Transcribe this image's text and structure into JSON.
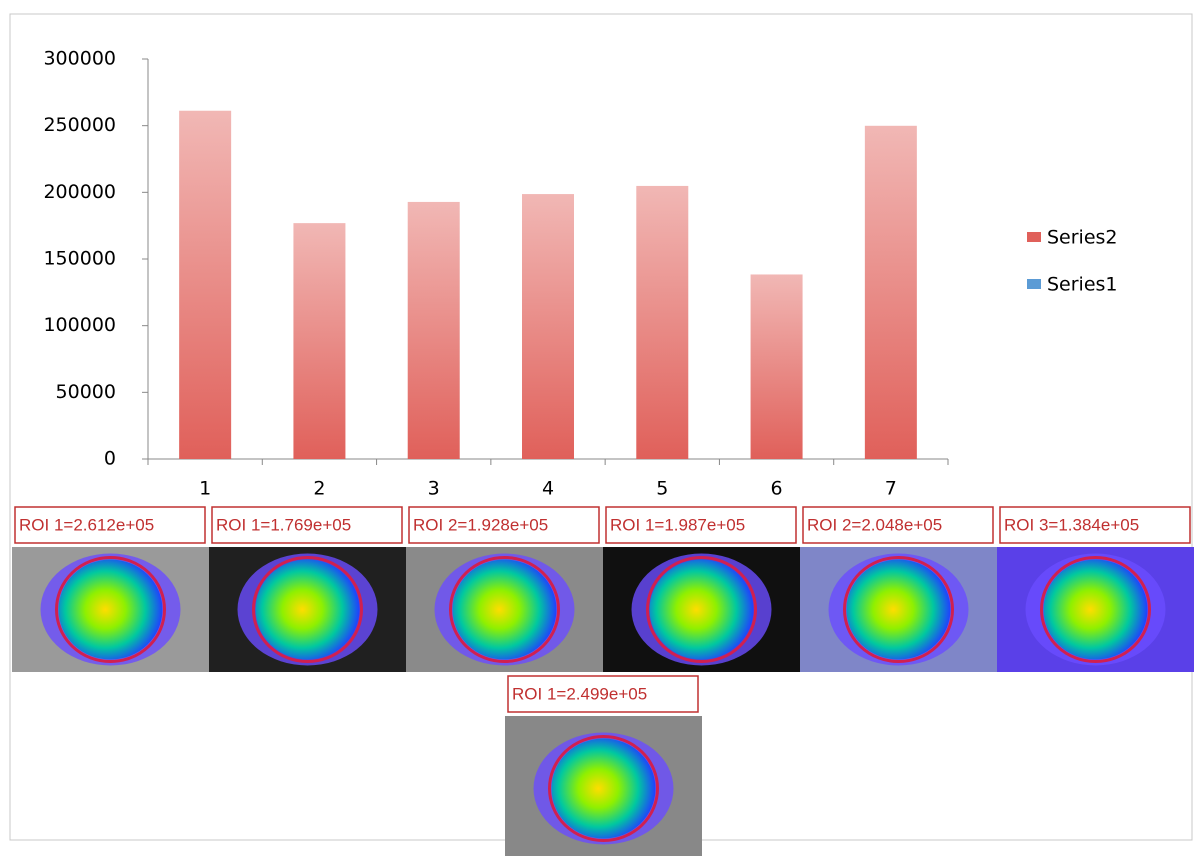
{
  "chart_data": {
    "type": "bar",
    "categories": [
      1,
      2,
      3,
      4,
      5,
      6,
      7
    ],
    "series": [
      {
        "name": "Series2",
        "color": "#e0605a",
        "values": [
          261200,
          176900,
          192800,
          198700,
          204800,
          138400,
          249900
        ]
      },
      {
        "name": "Series1",
        "color": "#5b9bd5",
        "values": [
          null,
          null,
          null,
          null,
          null,
          null,
          null
        ]
      }
    ],
    "ylim": [
      0,
      300000
    ],
    "yticks": [
      0,
      50000,
      100000,
      150000,
      200000,
      250000,
      300000
    ],
    "legend": "right"
  },
  "image_labels": [
    "ROI 1=2.612e+05",
    "ROI 1=1.769e+05",
    "ROI 2=1.928e+05",
    "ROI 1=1.987e+05",
    "ROI 2=2.048e+05",
    "ROI 3=1.384e+05",
    "ROI 1=2.499e+05"
  ]
}
